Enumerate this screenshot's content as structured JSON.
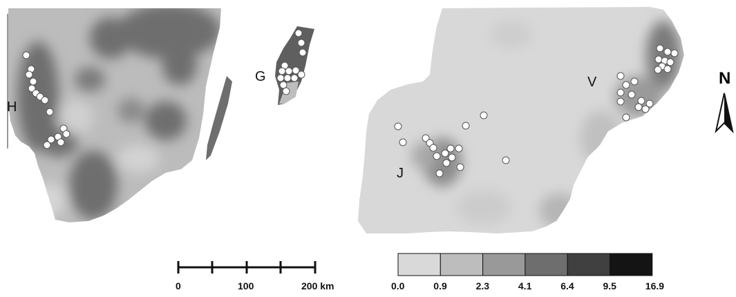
{
  "regions": [
    {
      "id": "H",
      "label": "H"
    },
    {
      "id": "G",
      "label": "G"
    },
    {
      "id": "V",
      "label": "V"
    },
    {
      "id": "J",
      "label": "J"
    }
  ],
  "north_arrow": {
    "label": "N"
  },
  "scale_bar": {
    "ticks": [
      "0",
      "100",
      "200 km"
    ]
  },
  "legend": {
    "colors": [
      "#d9d9d9",
      "#bdbdbd",
      "#999999",
      "#6e6e6e",
      "#404040",
      "#141414"
    ],
    "breaks": [
      "0.0",
      "0.9",
      "2.3",
      "4.1",
      "6.4",
      "9.5",
      "16.9"
    ]
  }
}
